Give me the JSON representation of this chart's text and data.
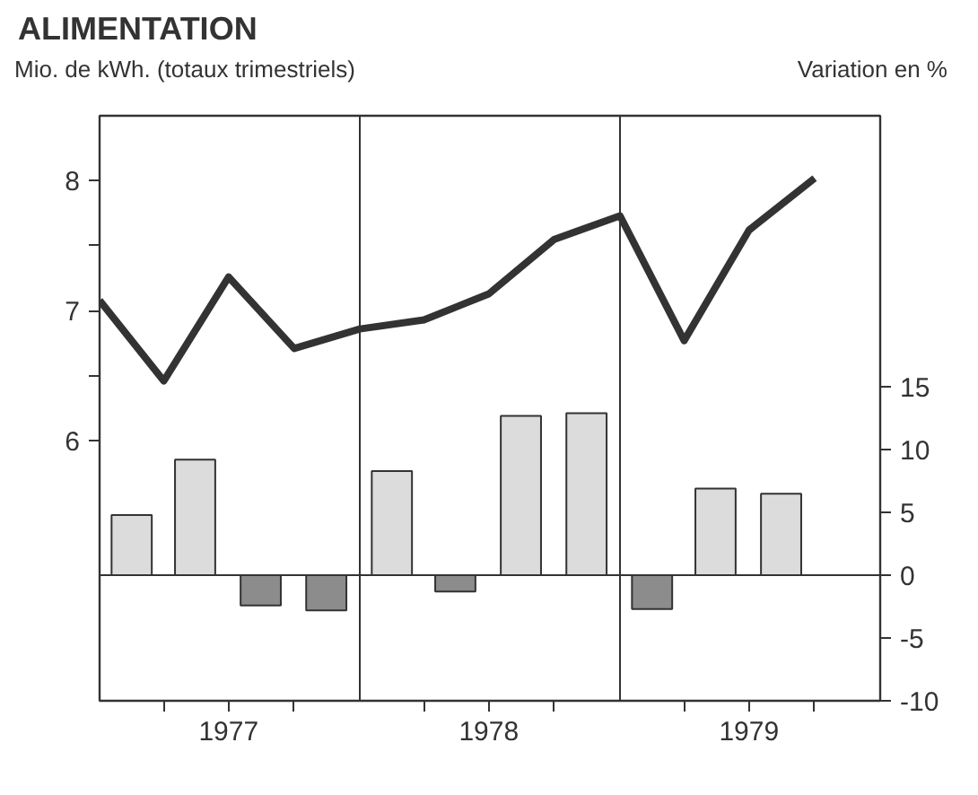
{
  "chart_data": {
    "type": "bar",
    "title": "ALIMENTATION",
    "ylabel": "Mio. de kWh. (totaux trimestriels)",
    "y2label": "Variation en %",
    "xlim": [
      "1977-01",
      "1980-01"
    ],
    "xticks": [
      {
        "value": "1977-04",
        "label": null
      },
      {
        "value": "1977-07",
        "label": "1977"
      },
      {
        "value": "1977-10",
        "label": null
      },
      {
        "value": "1978-04",
        "label": null
      },
      {
        "value": "1978-07",
        "label": "1978"
      },
      {
        "value": "1978-10",
        "label": null
      },
      {
        "value": "1979-04",
        "label": null
      },
      {
        "value": "1979-07",
        "label": "1979"
      },
      {
        "value": "1979-10",
        "label": null
      }
    ],
    "ylim": [
      4,
      8.5
    ],
    "yticks": [
      {
        "value": 6,
        "label": "6"
      },
      {
        "value": 6.5,
        "label": null
      },
      {
        "value": 7,
        "label": "7"
      },
      {
        "value": 7.5,
        "label": null
      },
      {
        "value": 8,
        "label": "8"
      }
    ],
    "y2lim": [
      -10,
      36.6
    ],
    "y2ticks": [
      -10,
      -5,
      0,
      5,
      10,
      15
    ],
    "ref_lines": [
      {
        "axis": "x",
        "value": "1978-01",
        "color": "#333333"
      },
      {
        "axis": "x",
        "value": "1979-01",
        "color": "#333333"
      },
      {
        "axis": "y2",
        "value": 0,
        "color": "#333333"
      }
    ],
    "grid": false,
    "series": [
      {
        "type": "line",
        "color": "#333333",
        "x": [
          "1977-01",
          "1977-04",
          "1977-07",
          "1977-10",
          "1978-01",
          "1978-04",
          "1978-07",
          "1978-10",
          "1979-01",
          "1979-04",
          "1979-07",
          "1979-10"
        ],
        "values": [
          7.08,
          6.46,
          7.26,
          6.71,
          6.86,
          6.93,
          7.13,
          7.55,
          7.73,
          6.77,
          7.62,
          8.02
        ]
      },
      {
        "axis": "y2",
        "x": [
          "1977-02-15",
          "1977-05-15",
          "1977-08-15",
          "1977-11-15",
          "1978-02-15",
          "1978-05-15",
          "1978-08-15",
          "1978-11-15",
          "1979-02-15",
          "1979-05-15",
          "1979-08-15"
        ],
        "values": [
          4.8,
          9.2,
          -2.4,
          -2.8,
          8.3,
          -1.3,
          12.7,
          12.9,
          -2.7,
          6.9,
          6.5
        ],
        "colors": [
          "#dcdcdc",
          "#dcdcdc",
          "#8c8c8c",
          "#8c8c8c",
          "#dcdcdc",
          "#8c8c8c",
          "#dcdcdc",
          "#dcdcdc",
          "#8c8c8c",
          "#dcdcdc",
          "#dcdcdc"
        ]
      }
    ]
  }
}
